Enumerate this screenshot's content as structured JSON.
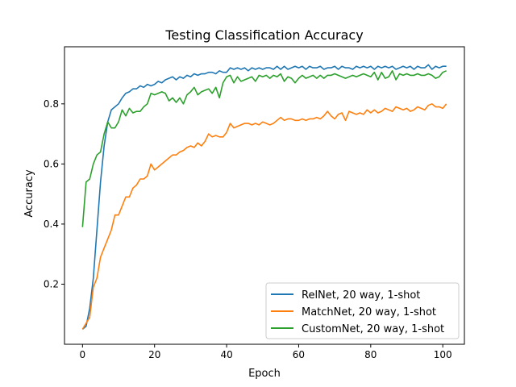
{
  "chart_data": {
    "type": "line",
    "title": "Testing Classification Accuracy",
    "xlabel": "Epoch",
    "ylabel": "Accuracy",
    "xlim": [
      -5,
      106
    ],
    "ylim": [
      0.0,
      0.99
    ],
    "xticks": [
      0,
      20,
      40,
      60,
      80,
      100
    ],
    "yticks": [
      0.2,
      0.4,
      0.6,
      0.8
    ],
    "grid": false,
    "legend_position": "lower-right",
    "series": [
      {
        "name": "RelNet, 20 way, 1-shot",
        "color": "#1f77b4",
        "values": [
          0.05,
          0.06,
          0.12,
          0.22,
          0.38,
          0.54,
          0.66,
          0.74,
          0.78,
          0.79,
          0.8,
          0.82,
          0.835,
          0.84,
          0.85,
          0.85,
          0.86,
          0.855,
          0.865,
          0.86,
          0.865,
          0.875,
          0.87,
          0.88,
          0.885,
          0.89,
          0.88,
          0.89,
          0.885,
          0.895,
          0.89,
          0.9,
          0.895,
          0.9,
          0.9,
          0.905,
          0.905,
          0.9,
          0.91,
          0.905,
          0.905,
          0.92,
          0.915,
          0.92,
          0.915,
          0.92,
          0.91,
          0.92,
          0.915,
          0.92,
          0.915,
          0.92,
          0.92,
          0.915,
          0.925,
          0.915,
          0.925,
          0.915,
          0.92,
          0.925,
          0.92,
          0.925,
          0.915,
          0.925,
          0.92,
          0.92,
          0.925,
          0.915,
          0.92,
          0.92,
          0.925,
          0.915,
          0.925,
          0.92,
          0.92,
          0.915,
          0.925,
          0.92,
          0.925,
          0.92,
          0.925,
          0.915,
          0.925,
          0.92,
          0.925,
          0.92,
          0.925,
          0.915,
          0.92,
          0.925,
          0.92,
          0.925,
          0.915,
          0.925,
          0.92,
          0.92,
          0.93,
          0.915,
          0.925,
          0.92,
          0.925,
          0.925
        ]
      },
      {
        "name": "MatchNet, 20 way, 1-shot",
        "color": "#ff7f0e",
        "values": [
          0.05,
          0.07,
          0.09,
          0.19,
          0.22,
          0.29,
          0.32,
          0.35,
          0.38,
          0.43,
          0.43,
          0.46,
          0.49,
          0.49,
          0.52,
          0.53,
          0.55,
          0.55,
          0.56,
          0.6,
          0.58,
          0.59,
          0.6,
          0.61,
          0.62,
          0.63,
          0.63,
          0.64,
          0.645,
          0.655,
          0.66,
          0.655,
          0.67,
          0.66,
          0.675,
          0.7,
          0.69,
          0.695,
          0.69,
          0.69,
          0.705,
          0.735,
          0.72,
          0.725,
          0.73,
          0.735,
          0.735,
          0.73,
          0.735,
          0.73,
          0.74,
          0.735,
          0.73,
          0.735,
          0.745,
          0.755,
          0.745,
          0.75,
          0.75,
          0.745,
          0.745,
          0.75,
          0.745,
          0.75,
          0.75,
          0.755,
          0.75,
          0.76,
          0.775,
          0.76,
          0.75,
          0.765,
          0.77,
          0.745,
          0.775,
          0.77,
          0.765,
          0.77,
          0.765,
          0.78,
          0.77,
          0.78,
          0.77,
          0.775,
          0.785,
          0.78,
          0.775,
          0.79,
          0.785,
          0.78,
          0.785,
          0.775,
          0.78,
          0.79,
          0.785,
          0.78,
          0.795,
          0.8,
          0.79,
          0.79,
          0.785,
          0.8
        ]
      },
      {
        "name": "CustomNet, 20 way, 1-shot",
        "color": "#2ca02c",
        "values": [
          0.39,
          0.54,
          0.55,
          0.6,
          0.63,
          0.64,
          0.7,
          0.74,
          0.72,
          0.72,
          0.74,
          0.78,
          0.76,
          0.785,
          0.77,
          0.775,
          0.775,
          0.79,
          0.8,
          0.835,
          0.83,
          0.835,
          0.84,
          0.835,
          0.81,
          0.82,
          0.805,
          0.82,
          0.8,
          0.83,
          0.84,
          0.855,
          0.83,
          0.84,
          0.845,
          0.85,
          0.835,
          0.855,
          0.82,
          0.87,
          0.89,
          0.895,
          0.87,
          0.89,
          0.875,
          0.88,
          0.885,
          0.89,
          0.875,
          0.895,
          0.89,
          0.895,
          0.885,
          0.895,
          0.89,
          0.9,
          0.875,
          0.89,
          0.885,
          0.87,
          0.885,
          0.895,
          0.885,
          0.89,
          0.895,
          0.885,
          0.895,
          0.885,
          0.895,
          0.895,
          0.9,
          0.895,
          0.89,
          0.885,
          0.89,
          0.895,
          0.89,
          0.895,
          0.9,
          0.895,
          0.89,
          0.905,
          0.88,
          0.905,
          0.885,
          0.89,
          0.91,
          0.88,
          0.9,
          0.895,
          0.9,
          0.895,
          0.895,
          0.9,
          0.895,
          0.895,
          0.9,
          0.895,
          0.885,
          0.89,
          0.905,
          0.91
        ]
      }
    ]
  }
}
